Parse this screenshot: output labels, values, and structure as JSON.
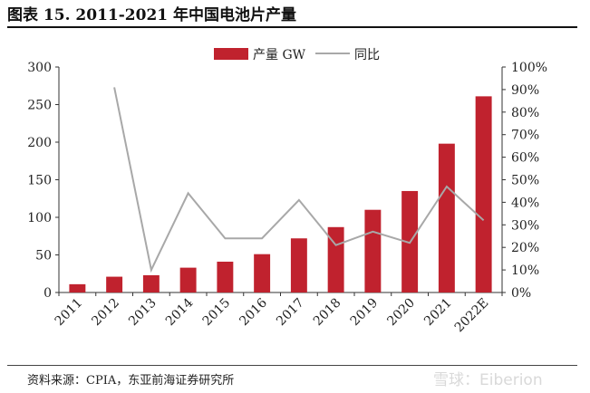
{
  "title": "图表 15. 2011-2021 年中国电池片产量",
  "source": "资料来源：CPIA，东亚前海证券研究所",
  "watermark": "雪球：Eiberion",
  "colors": {
    "bar": "#c0222e",
    "line": "#a8a8a8"
  },
  "chart_data": {
    "type": "bar",
    "categories": [
      "2011",
      "2012",
      "2013",
      "2014",
      "2015",
      "2016",
      "2017",
      "2018",
      "2019",
      "2020",
      "2021",
      "2022E"
    ],
    "series": [
      {
        "name": "产量 GW",
        "type": "bar",
        "axis": "left",
        "values": [
          11,
          21,
          23,
          33,
          41,
          51,
          72,
          87,
          110,
          135,
          198,
          261
        ]
      },
      {
        "name": "同比",
        "type": "line",
        "axis": "right",
        "values": [
          null,
          0.91,
          0.1,
          0.44,
          0.24,
          0.24,
          0.41,
          0.21,
          0.27,
          0.22,
          0.47,
          0.32
        ]
      }
    ],
    "yleft": {
      "min": 0,
      "max": 300,
      "ticks": [
        0,
        50,
        100,
        150,
        200,
        250,
        300
      ]
    },
    "yright": {
      "min": 0,
      "max": 1.0,
      "ticks": [
        "0%",
        "10%",
        "20%",
        "30%",
        "40%",
        "50%",
        "60%",
        "70%",
        "80%",
        "90%",
        "100%"
      ]
    },
    "legend": "top-center",
    "grid": false
  }
}
